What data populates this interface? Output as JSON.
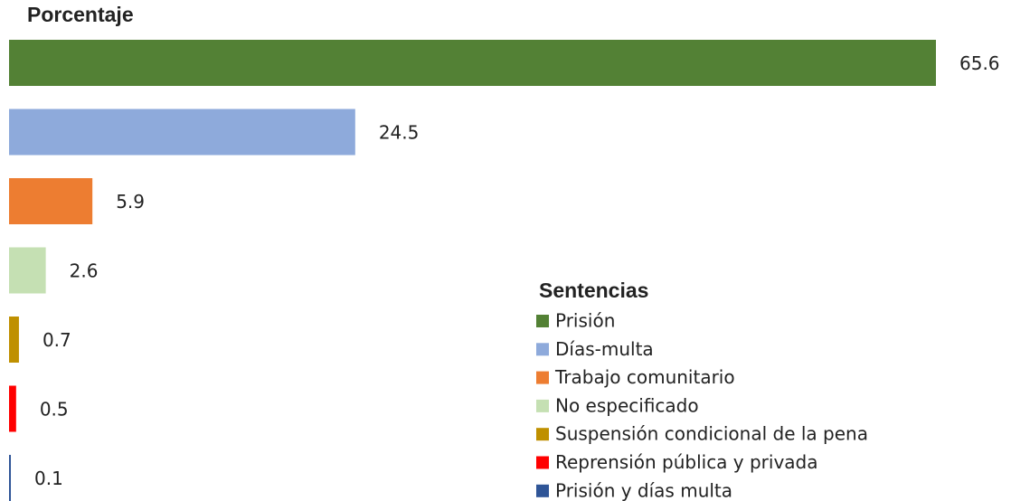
{
  "chart_data": {
    "type": "bar",
    "orientation": "horizontal",
    "title": "Porcentaje",
    "legend_title": "Sentencias",
    "categories": [
      "Prisión",
      "Días-multa",
      "Trabajo comunitario",
      "No especificado",
      "Suspensión condicional de la pena",
      "Reprensión pública y privada",
      "Prisión y días multa"
    ],
    "values": [
      65.6,
      24.5,
      5.9,
      2.6,
      0.7,
      0.5,
      0.1
    ],
    "colors": [
      "#538135",
      "#8eaadb",
      "#ed7d31",
      "#c5e0b3",
      "#bf9000",
      "#ff0000",
      "#2f5597"
    ],
    "xlim": [
      0,
      65.6
    ],
    "legend": "lower right"
  }
}
